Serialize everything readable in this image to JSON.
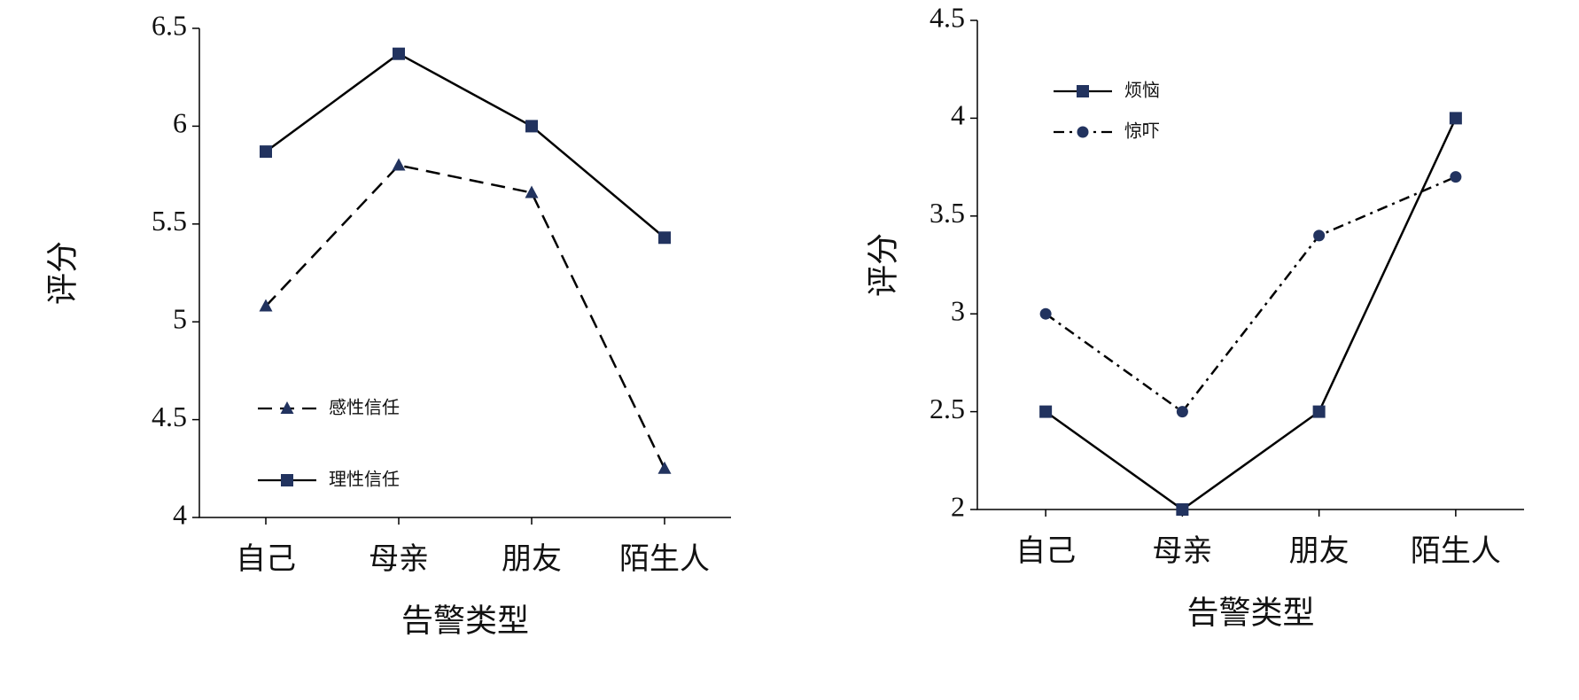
{
  "chart_data": [
    {
      "type": "line",
      "categories": [
        "自己",
        "母亲",
        "朋友",
        "陌生人"
      ],
      "x_label": "告警类型",
      "y_label": "评分",
      "ylim": [
        4,
        6.5
      ],
      "yticks": [
        4,
        4.5,
        5,
        5.5,
        6,
        6.5
      ],
      "legend": "lower left",
      "series": [
        {
          "name": "感性信任",
          "color": "#22335f",
          "line_color": "#000000",
          "line_style": "dashed",
          "marker": "triangle",
          "values": [
            5.08,
            5.8,
            5.66,
            4.25
          ]
        },
        {
          "name": "理性信任",
          "color": "#22335f",
          "line_color": "#000000",
          "line_style": "solid",
          "marker": "square",
          "values": [
            5.87,
            6.37,
            6.0,
            5.43
          ]
        }
      ]
    },
    {
      "type": "line",
      "categories": [
        "自己",
        "母亲",
        "朋友",
        "陌生人"
      ],
      "x_label": "告警类型",
      "y_label": "评分",
      "ylim": [
        2,
        4.5
      ],
      "yticks": [
        2,
        2.5,
        3,
        3.5,
        4,
        4.5
      ],
      "legend": "upper left",
      "series": [
        {
          "name": "烦恼",
          "color": "#22335f",
          "line_color": "#000000",
          "line_style": "solid",
          "marker": "square",
          "values": [
            2.5,
            2.0,
            2.5,
            4.0
          ]
        },
        {
          "name": "惊吓",
          "color": "#22335f",
          "line_color": "#000000",
          "line_style": "dashdot",
          "marker": "circle",
          "values": [
            3.0,
            2.5,
            3.4,
            3.7
          ]
        }
      ]
    }
  ]
}
